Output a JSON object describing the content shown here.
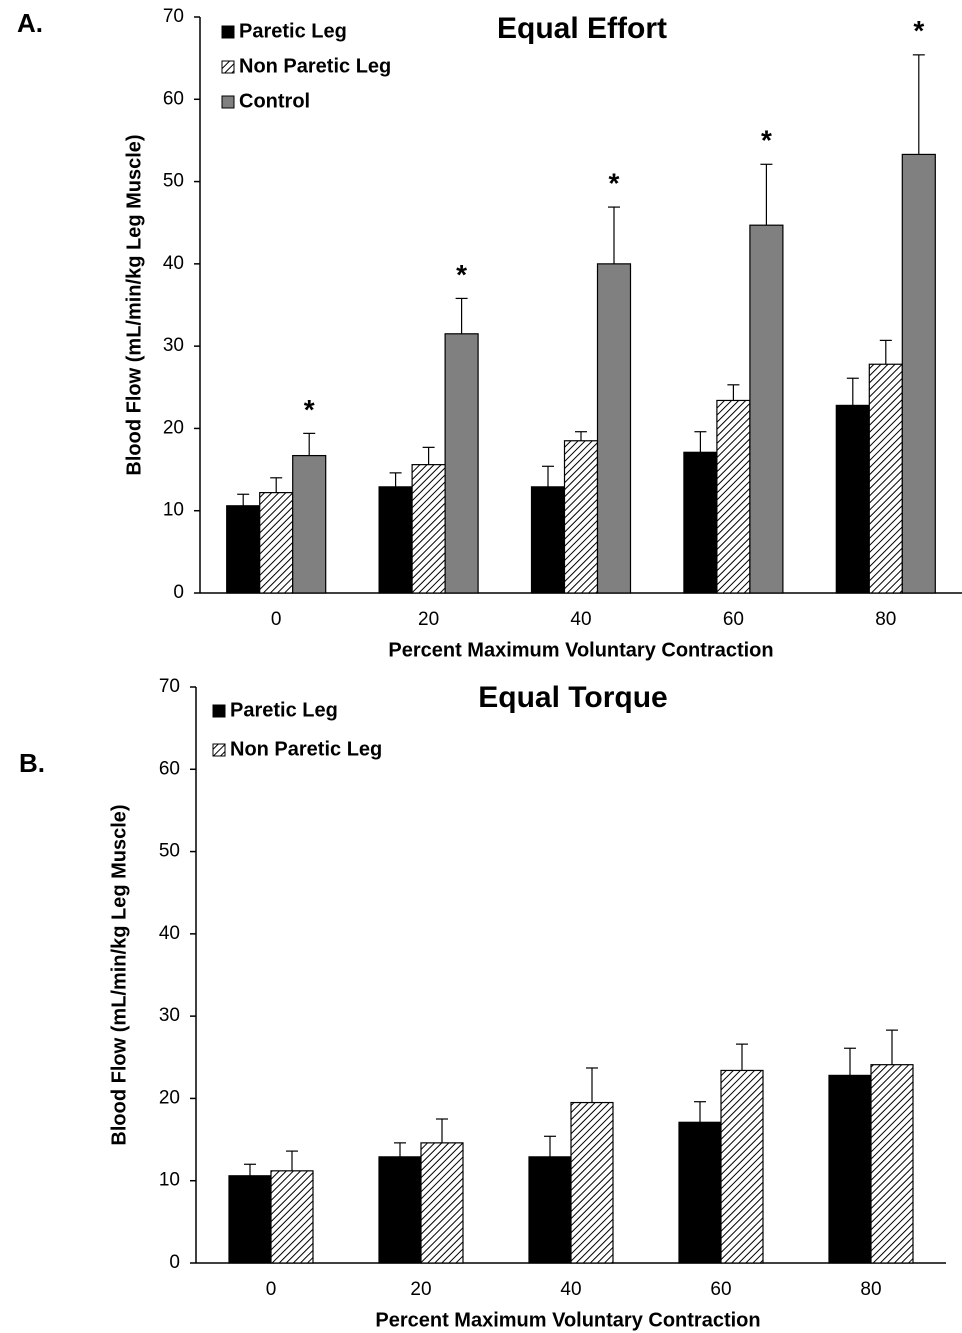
{
  "chart_data": [
    {
      "type": "bar",
      "panel_label": "A.",
      "title": "Equal Effort",
      "x_label": "Percent Maximum Voluntary Contraction",
      "y_label": "Blood Flow (mL/min/kg Leg Muscle)",
      "categories": [
        "0",
        "20",
        "40",
        "60",
        "80"
      ],
      "series": [
        {
          "name": "Paretic Leg",
          "color": "#000000",
          "values": [
            10.6,
            12.9,
            12.9,
            17.1,
            22.8
          ],
          "errors": [
            1.4,
            1.7,
            2.5,
            2.5,
            3.3
          ]
        },
        {
          "name": "Non Paretic Leg",
          "color": "#ffffff",
          "pattern": "hatch",
          "values": [
            12.2,
            15.6,
            18.5,
            23.4,
            27.8
          ],
          "errors": [
            1.8,
            2.1,
            1.1,
            1.9,
            2.9
          ]
        },
        {
          "name": "Control",
          "color": "#808080",
          "values": [
            16.7,
            31.5,
            40.0,
            44.7,
            53.3
          ],
          "errors": [
            2.7,
            4.3,
            6.9,
            7.4,
            12.1
          ],
          "significance": [
            "*",
            "*",
            "*",
            "*",
            "*"
          ]
        }
      ],
      "ylim": [
        0,
        70
      ],
      "yticks": [
        0,
        10,
        20,
        30,
        40,
        50,
        60,
        70
      ],
      "grid": false,
      "legend": "upper left"
    },
    {
      "type": "bar",
      "panel_label": "B.",
      "title": "Equal Torque",
      "x_label": "Percent Maximum Voluntary Contraction",
      "y_label": "Blood Flow (mL/min/kg Leg Muscle)",
      "categories": [
        "0",
        "20",
        "40",
        "60",
        "80"
      ],
      "series": [
        {
          "name": "Paretic Leg",
          "color": "#000000",
          "values": [
            10.6,
            12.9,
            12.9,
            17.1,
            22.8
          ],
          "errors": [
            1.4,
            1.7,
            2.5,
            2.5,
            3.3
          ]
        },
        {
          "name": "Non Paretic Leg",
          "color": "#ffffff",
          "pattern": "hatch",
          "values": [
            11.2,
            14.6,
            19.5,
            23.4,
            24.1
          ],
          "errors": [
            2.4,
            2.9,
            4.2,
            3.2,
            4.2
          ]
        }
      ],
      "ylim": [
        0,
        70
      ],
      "yticks": [
        0,
        10,
        20,
        30,
        40,
        50,
        60,
        70
      ],
      "grid": false,
      "legend": "upper left"
    }
  ]
}
